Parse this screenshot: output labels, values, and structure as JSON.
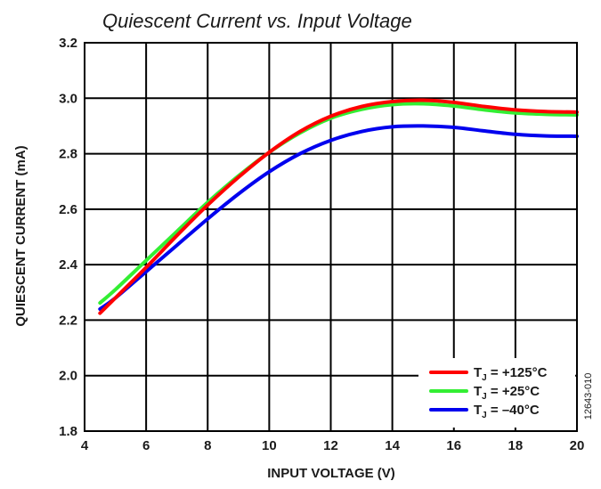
{
  "chart_data": {
    "type": "line",
    "title": "Quiescent Current vs. Input Voltage",
    "xlabel": "INPUT VOLTAGE (V)",
    "ylabel": "QUIESCENT CURRENT (mA)",
    "xlim": [
      4,
      20
    ],
    "ylim": [
      1.8,
      3.2
    ],
    "xticks": [
      4,
      6,
      8,
      10,
      12,
      14,
      16,
      18,
      20
    ],
    "yticks": [
      1.8,
      2.0,
      2.2,
      2.4,
      2.6,
      2.8,
      3.0,
      3.2
    ],
    "xtick_labels": [
      "4",
      "6",
      "8",
      "10",
      "12",
      "14",
      "16",
      "18",
      "20"
    ],
    "ytick_labels": [
      "1.8",
      "2.0",
      "2.2",
      "2.4",
      "2.6",
      "2.8",
      "3.0",
      "3.2"
    ],
    "grid": true,
    "legend_position": "bottom-right",
    "figure_id": "12643-010",
    "series": [
      {
        "name": "+125°C",
        "label_prefix": "T",
        "label_sub": "J",
        "label_suffix": " = +125°C",
        "color": "#ff0000",
        "x": [
          4.5,
          5,
          6,
          7,
          8,
          9,
          10,
          11,
          12,
          13,
          14,
          15,
          16,
          17,
          18,
          19,
          20
        ],
        "y": [
          2.225,
          2.28,
          2.39,
          2.505,
          2.615,
          2.715,
          2.805,
          2.88,
          2.935,
          2.97,
          2.988,
          2.993,
          2.985,
          2.97,
          2.958,
          2.952,
          2.95
        ]
      },
      {
        "name": "+25°C",
        "label_prefix": "T",
        "label_sub": "J",
        "label_suffix": " = +25°C",
        "color": "#33ee33",
        "x": [
          4.5,
          5,
          6,
          7,
          8,
          9,
          10,
          11,
          12,
          13,
          14,
          15,
          16,
          17,
          18,
          19,
          20
        ],
        "y": [
          2.262,
          2.31,
          2.415,
          2.52,
          2.625,
          2.72,
          2.805,
          2.875,
          2.928,
          2.96,
          2.977,
          2.98,
          2.972,
          2.958,
          2.947,
          2.942,
          2.94
        ]
      },
      {
        "name": "–40°C",
        "label_prefix": "T",
        "label_sub": "J",
        "label_suffix": " = –40°C",
        "color": "#0000ee",
        "x": [
          4.5,
          5,
          6,
          7,
          8,
          9,
          10,
          11,
          12,
          13,
          14,
          15,
          16,
          17,
          18,
          19,
          20
        ],
        "y": [
          2.24,
          2.28,
          2.375,
          2.47,
          2.565,
          2.655,
          2.735,
          2.8,
          2.848,
          2.88,
          2.897,
          2.9,
          2.895,
          2.882,
          2.87,
          2.864,
          2.863
        ]
      }
    ]
  }
}
